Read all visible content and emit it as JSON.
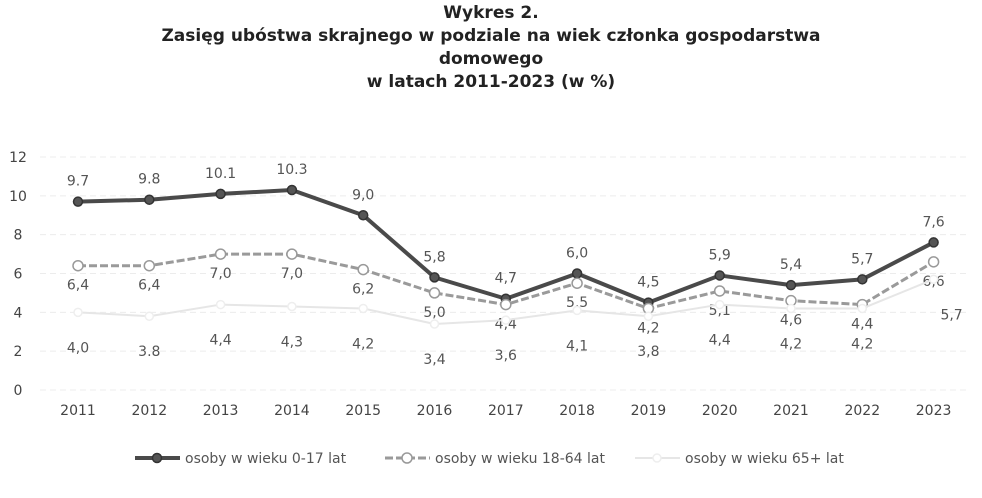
{
  "chart_data": {
    "type": "line",
    "title_lines": [
      "Wykres 2.",
      "Zasięg ubóstwa skrajnego w podziale na wiek członka gospodarstwa",
      "domowego",
      "w latach 2011-2023  (w %)"
    ],
    "xlabel": "",
    "ylabel": "",
    "categories": [
      "2011",
      "2012",
      "2013",
      "2014",
      "2015",
      "2016",
      "2017",
      "2018",
      "2019",
      "2020",
      "2021",
      "2022",
      "2023"
    ],
    "ylim": [
      0,
      12
    ],
    "yticks": [
      "0",
      "2",
      "4",
      "6",
      "8",
      "10",
      "12"
    ],
    "grid": true,
    "legend_position": "bottom",
    "series": [
      {
        "name": "osoby w wieku 0-17 lat",
        "color": "#4a4a4a",
        "values": [
          9.7,
          9.8,
          10.1,
          10.3,
          9.0,
          5.8,
          4.7,
          6.0,
          4.5,
          5.9,
          5.4,
          5.7,
          7.6
        ],
        "labels": [
          "9.7",
          "9.8",
          "10.1",
          "10.3",
          "9,0",
          "5,8",
          "4,7",
          "6,0",
          "4,5",
          "5,9",
          "5,4",
          "5,7",
          "7,6"
        ]
      },
      {
        "name": "osoby w wieku 18-64 lat",
        "color": "#9a9a9a",
        "values": [
          6.4,
          6.4,
          7.0,
          7.0,
          6.2,
          5.0,
          4.4,
          5.5,
          4.2,
          5.1,
          4.6,
          4.4,
          6.6
        ],
        "labels": [
          "6,4",
          "6,4",
          "7,0",
          "7,0",
          "6,2",
          "5,0",
          "4,4",
          "5,5",
          "4,2",
          "5,1",
          "4,6",
          "4,4",
          "6,6"
        ]
      },
      {
        "name": "osoby w wieku 65+ lat",
        "color": "#e6e6e6",
        "values": [
          4.0,
          3.8,
          4.4,
          4.3,
          4.2,
          3.4,
          3.6,
          4.1,
          3.8,
          4.4,
          4.2,
          4.2,
          5.7
        ],
        "labels": [
          "4,0",
          "3.8",
          "4,4",
          "4,3",
          "4,2",
          "3,4",
          "3,6",
          "4,1",
          "3,8",
          "4,4",
          "4,2",
          "4,2",
          "5,7"
        ]
      }
    ]
  }
}
